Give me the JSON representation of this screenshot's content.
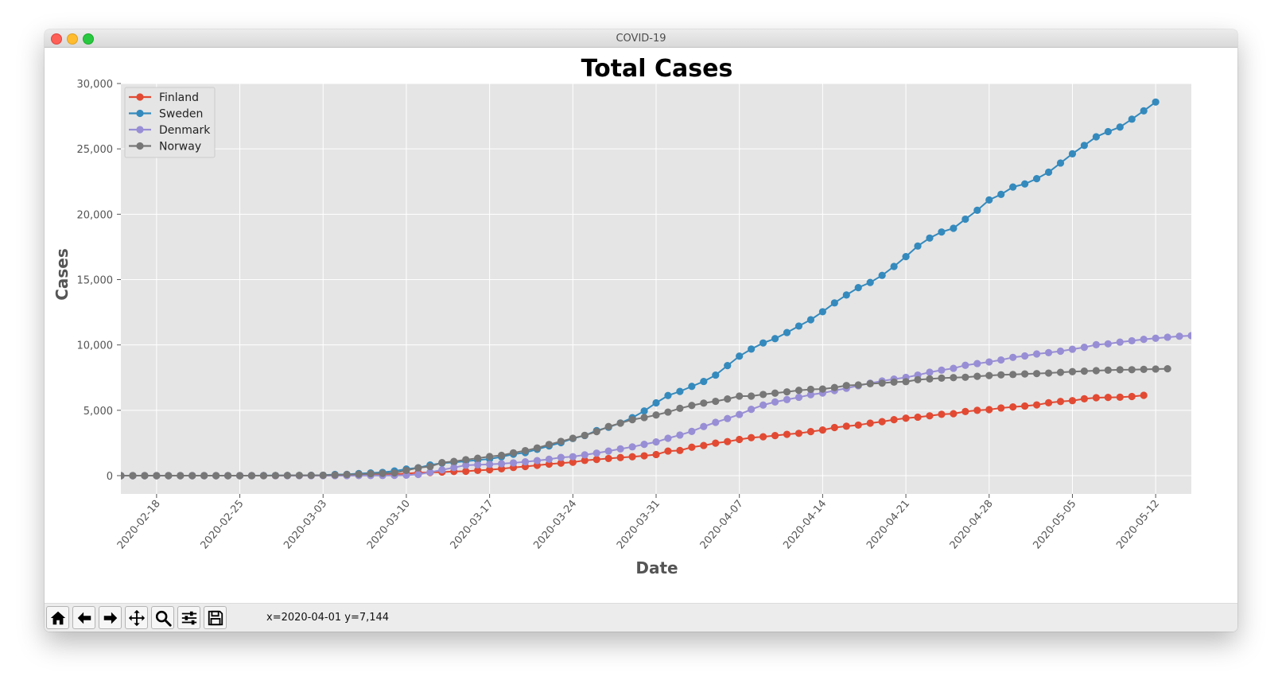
{
  "window": {
    "title": "COVID-19"
  },
  "toolbar": {
    "buttons": [
      {
        "name": "home-button",
        "icon": "home-icon"
      },
      {
        "name": "back-button",
        "icon": "arrow-left-icon"
      },
      {
        "name": "forward-button",
        "icon": "arrow-right-icon"
      },
      {
        "name": "pan-button",
        "icon": "move-icon"
      },
      {
        "name": "zoom-button",
        "icon": "zoom-icon"
      },
      {
        "name": "configure-subplots-button",
        "icon": "sliders-icon"
      },
      {
        "name": "save-button",
        "icon": "save-icon"
      }
    ],
    "coords": "x=2020-04-01 y=7,144"
  },
  "chart_data": {
    "type": "line",
    "title": "Total Cases",
    "xlabel": "Date",
    "ylabel": "Cases",
    "x_start": "2020-02-15",
    "x_end": "2020-05-15",
    "xlim": [
      "2020-02-15",
      "2020-05-15"
    ],
    "ylim": [
      -1400,
      30000
    ],
    "x_ticks": [
      "2020-02-18",
      "2020-02-25",
      "2020-03-03",
      "2020-03-10",
      "2020-03-17",
      "2020-03-24",
      "2020-03-31",
      "2020-04-07",
      "2020-04-14",
      "2020-04-21",
      "2020-04-28",
      "2020-05-05",
      "2020-05-12"
    ],
    "y_ticks": [
      0,
      5000,
      10000,
      15000,
      20000,
      25000,
      30000
    ],
    "y_tick_labels": [
      "0",
      "5,000",
      "10,000",
      "15,000",
      "20,000",
      "25,000",
      "30,000"
    ],
    "grid": true,
    "legend": "upper-left",
    "background": "#e5e5e5",
    "series": [
      {
        "name": "Finland",
        "color": "#e24a33",
        "values": [
          0,
          0,
          0,
          0,
          0,
          0,
          0,
          0,
          0,
          0,
          1,
          2,
          2,
          3,
          6,
          6,
          6,
          12,
          15,
          23,
          30,
          40,
          59,
          109,
          155,
          225,
          244,
          277,
          321,
          336,
          400,
          450,
          523,
          626,
          700,
          792,
          880,
          958,
          1025,
          1167,
          1240,
          1313,
          1384,
          1446,
          1518,
          1615,
          1882,
          1927,
          2176,
          2308,
          2487,
          2605,
          2769,
          2905,
          2974,
          3064,
          3161,
          3237,
          3369,
          3489,
          3681,
          3783,
          3868,
          4014,
          4129,
          4284,
          4395,
          4475,
          4576,
          4695,
          4740,
          4906,
          4995,
          5051,
          5176,
          5254,
          5327,
          5412,
          5573,
          5673,
          5738,
          5880,
          5962,
          5984,
          6003,
          6054,
          6145
        ]
      },
      {
        "name": "Sweden",
        "color": "#348abd",
        "values": [
          0,
          0,
          0,
          0,
          0,
          0,
          0,
          0,
          0,
          0,
          1,
          2,
          7,
          12,
          14,
          15,
          21,
          35,
          94,
          101,
          161,
          203,
          248,
          355,
          500,
          599,
          814,
          961,
          1022,
          1103,
          1190,
          1279,
          1439,
          1639,
          1763,
          2016,
          2272,
          2526,
          2840,
          3069,
          3447,
          3700,
          4028,
          4435,
          4947,
          5568,
          6131,
          6443,
          6830,
          7206,
          7693,
          8419,
          9141,
          9685,
          10151,
          10483,
          10948,
          11445,
          11927,
          12540,
          13216,
          13822,
          14385,
          14777,
          15322,
          16004,
          16755,
          17567,
          18177,
          18640,
          18926,
          19621,
          20302,
          21092,
          21520,
          22082,
          22317,
          22721,
          23216,
          23918,
          24623,
          25265,
          25921,
          26322,
          26670,
          27272,
          27909,
          28582
        ]
      },
      {
        "name": "Denmark",
        "color": "#988ed5",
        "values": [
          0,
          0,
          0,
          0,
          0,
          0,
          0,
          0,
          0,
          0,
          0,
          0,
          0,
          0,
          0,
          0,
          1,
          1,
          2,
          3,
          4,
          6,
          10,
          23,
          35,
          90,
          262,
          442,
          615,
          801,
          827,
          864,
          914,
          977,
          1057,
          1151,
          1255,
          1395,
          1450,
          1591,
          1724,
          1877,
          2046,
          2201,
          2395,
          2577,
          2860,
          3107,
          3386,
          3757,
          4077,
          4369,
          4681,
          5071,
          5402,
          5635,
          5819,
          5996,
          6191,
          6318,
          6511,
          6681,
          6879,
          7073,
          7242,
          7384,
          7515,
          7695,
          7912,
          8073,
          8210,
          8445,
          8575,
          8698,
          8851,
          9049,
          9158,
          9311,
          9407,
          9523,
          9670,
          9821,
          10019,
          10083,
          10218,
          10319,
          10429,
          10513,
          10591,
          10667,
          10713
        ]
      },
      {
        "name": "Norway",
        "color": "#777777",
        "values": [
          0,
          0,
          0,
          0,
          0,
          0,
          0,
          0,
          0,
          0,
          0,
          0,
          1,
          6,
          15,
          19,
          25,
          32,
          56,
          87,
          108,
          147,
          176,
          205,
          400,
          598,
          702,
          996,
          1090,
          1221,
          1333,
          1463,
          1550,
          1746,
          1914,
          2118,
          2385,
          2621,
          2863,
          3084,
          3369,
          3755,
          4015,
          4284,
          4445,
          4641,
          4863,
          5147,
          5370,
          5550,
          5687,
          5865,
          6086,
          6086,
          6211,
          6314,
          6409,
          6525,
          6603,
          6623,
          6740,
          6896,
          6937,
          7036,
          7078,
          7156,
          7191,
          7338,
          7401,
          7463,
          7499,
          7527,
          7599,
          7660,
          7710,
          7738,
          7783,
          7809,
          7847,
          7904,
          7955,
          7996,
          8034,
          8070,
          8099,
          8105,
          8132,
          8157,
          8175
        ]
      }
    ]
  }
}
